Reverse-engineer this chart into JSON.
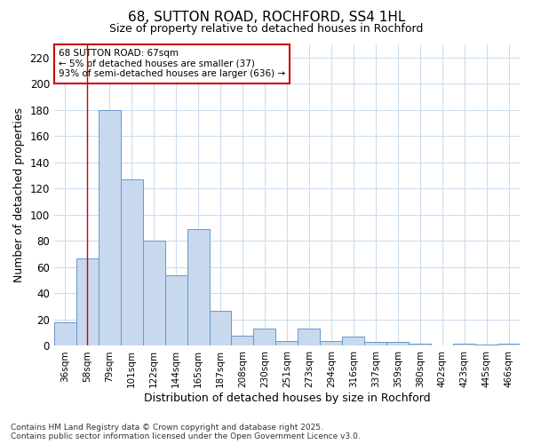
{
  "title": "68, SUTTON ROAD, ROCHFORD, SS4 1HL",
  "subtitle": "Size of property relative to detached houses in Rochford",
  "xlabel": "Distribution of detached houses by size in Rochford",
  "ylabel": "Number of detached properties",
  "categories": [
    "36sqm",
    "58sqm",
    "79sqm",
    "101sqm",
    "122sqm",
    "144sqm",
    "165sqm",
    "187sqm",
    "208sqm",
    "230sqm",
    "251sqm",
    "273sqm",
    "294sqm",
    "316sqm",
    "337sqm",
    "359sqm",
    "380sqm",
    "402sqm",
    "423sqm",
    "445sqm",
    "466sqm"
  ],
  "values": [
    18,
    67,
    180,
    127,
    80,
    54,
    89,
    27,
    8,
    13,
    4,
    13,
    4,
    7,
    3,
    3,
    2,
    0,
    2,
    1,
    2
  ],
  "bar_color": "#c8d8ee",
  "bar_edge_color": "#6699cc",
  "grid_color": "#ccddee",
  "background_color": "#ffffff",
  "annotation_box_color": "#cc0000",
  "annotation_text": "68 SUTTON ROAD: 67sqm\n← 5% of detached houses are smaller (37)\n93% of semi-detached houses are larger (636) →",
  "vline_x": 1,
  "ylim": [
    0,
    230
  ],
  "yticks": [
    0,
    20,
    40,
    60,
    80,
    100,
    120,
    140,
    160,
    180,
    200,
    220
  ],
  "footer": "Contains HM Land Registry data © Crown copyright and database right 2025.\nContains public sector information licensed under the Open Government Licence v3.0."
}
